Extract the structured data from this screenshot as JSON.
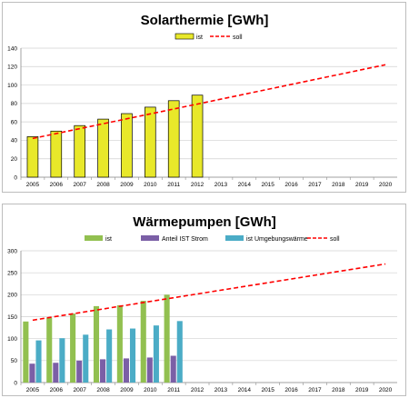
{
  "chart_data": [
    {
      "type": "bar",
      "title": "Solarthermie [GWh]",
      "categories": [
        "2005",
        "2006",
        "2007",
        "2008",
        "2009",
        "2010",
        "2011",
        "2012",
        "2013",
        "2014",
        "2015",
        "2016",
        "2017",
        "2018",
        "2019",
        "2020"
      ],
      "series": [
        {
          "name": "ist",
          "kind": "bar",
          "color": "#e8e82a",
          "values": [
            44,
            50,
            56,
            63,
            69,
            76,
            83,
            89,
            null,
            null,
            null,
            null,
            null,
            null,
            null,
            null
          ]
        },
        {
          "name": "soll",
          "kind": "line",
          "style": "dashed",
          "color": "#ff0000",
          "start": [
            2005,
            42
          ],
          "end": [
            2020,
            122
          ]
        }
      ],
      "ylim": [
        0,
        140
      ],
      "yticks": [
        0,
        20,
        40,
        60,
        80,
        100,
        120,
        140
      ],
      "grid": true,
      "legend": "top-center"
    },
    {
      "type": "bar",
      "title": "Wärmepumpen [GWh]",
      "categories": [
        "2005",
        "2006",
        "2007",
        "2008",
        "2009",
        "2010",
        "2011",
        "2012",
        "2013",
        "2014",
        "2015",
        "2016",
        "2017",
        "2018",
        "2019",
        "2020"
      ],
      "series": [
        {
          "name": "ist",
          "kind": "bar",
          "color": "#92c050",
          "values": [
            139,
            148,
            157,
            174,
            176,
            186,
            200,
            null,
            null,
            null,
            null,
            null,
            null,
            null,
            null,
            null
          ]
        },
        {
          "name": "Anteil IST Strom",
          "kind": "bar",
          "color": "#7b5fa6",
          "values": [
            43,
            45,
            50,
            53,
            55,
            57,
            61,
            null,
            null,
            null,
            null,
            null,
            null,
            null,
            null,
            null
          ]
        },
        {
          "name": "ist Umgebungswärme",
          "kind": "bar",
          "color": "#4bacc6",
          "values": [
            96,
            101,
            109,
            121,
            123,
            130,
            140,
            null,
            null,
            null,
            null,
            null,
            null,
            null,
            null,
            null
          ]
        },
        {
          "name": "soll",
          "kind": "line",
          "style": "dashed",
          "color": "#ff0000",
          "start": [
            2005,
            142
          ],
          "end": [
            2020,
            270
          ]
        }
      ],
      "ylim": [
        0,
        300
      ],
      "yticks": [
        0,
        50,
        100,
        150,
        200,
        250,
        300
      ],
      "grid": true,
      "legend": "top-center"
    }
  ]
}
